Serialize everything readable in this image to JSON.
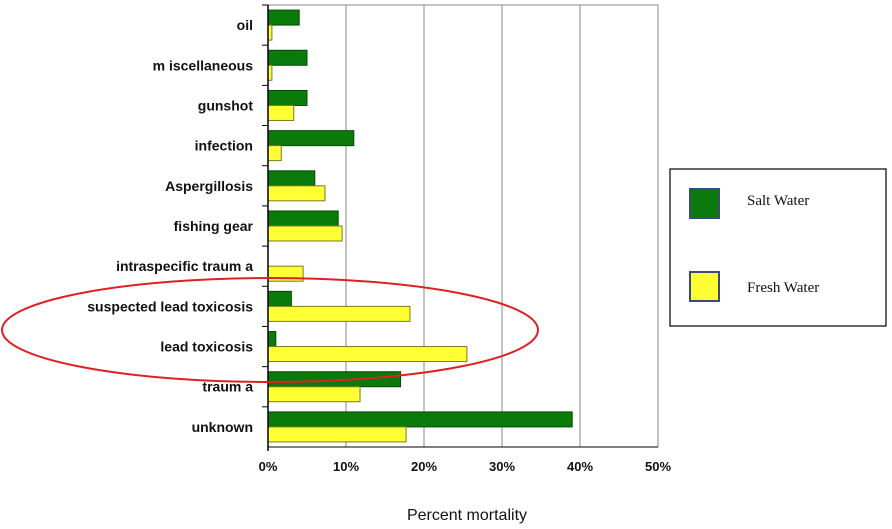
{
  "chart_data": {
    "type": "bar",
    "orientation": "horizontal",
    "categories": [
      "oil",
      "m iscellaneous",
      "gunshot",
      "infection",
      "Aspergillosis",
      "fishing gear",
      "intraspecific traum a",
      "suspected lead toxicosis",
      "lead toxicosis",
      "traum a",
      "unknown"
    ],
    "series": [
      {
        "name": "Salt Water",
        "color": "#0a7a0a",
        "values": [
          4,
          5,
          5,
          11,
          6,
          9,
          0,
          3,
          1,
          17,
          39
        ]
      },
      {
        "name": "Fresh Water",
        "color": "#ffff33",
        "values": [
          0.5,
          0.5,
          3.3,
          1.7,
          7.3,
          9.5,
          4.5,
          18.2,
          25.5,
          11.8,
          17.7
        ]
      }
    ],
    "xlabel": "Percent mortality",
    "xlim": [
      0,
      50
    ],
    "xticks": [
      "0%",
      "10%",
      "20%",
      "30%",
      "40%",
      "50%"
    ],
    "grid": "vertical",
    "legend_position": "right",
    "annotation": {
      "type": "ellipse",
      "color": "#e02020",
      "highlights": [
        "suspected lead toxicosis",
        "lead toxicosis"
      ]
    }
  }
}
